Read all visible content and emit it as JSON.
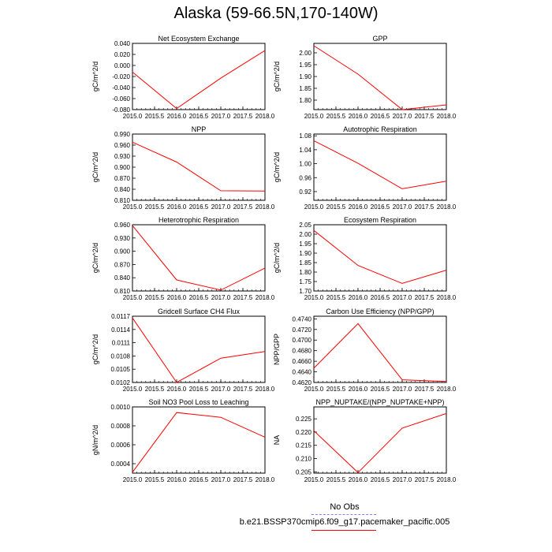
{
  "title": "Alaska (59-66.5N,170-140W)",
  "colors": {
    "model": "#ff0000",
    "obs": "#7f7fff",
    "axis": "#000000"
  },
  "legend": {
    "obs_label": "No Obs",
    "model_label": "b.e21.BSSP370cmip6.f09_g17.pacemaker_pacific.005"
  },
  "chart_data": [
    {
      "type": "line",
      "title": "Net Ecosystem Exchange",
      "ylabel": "gC/m^2/d",
      "xlim": [
        2015.0,
        2018.0
      ],
      "xticks": [
        "2015.0",
        "2015.5",
        "2016.0",
        "2016.5",
        "2017.0",
        "2017.5",
        "2018.0"
      ],
      "ylim": [
        -0.08,
        0.04
      ],
      "yticks": [
        "0.040",
        "0.020",
        "0.000",
        "-0.020",
        "-0.040",
        "-0.060",
        "-0.080"
      ],
      "series": [
        {
          "x": [
            2015,
            2016,
            2017,
            2018
          ],
          "y": [
            -0.012,
            -0.078,
            -0.023,
            0.027
          ]
        }
      ]
    },
    {
      "type": "line",
      "title": "GPP",
      "ylabel": "gC/m^2/d",
      "xlim": [
        2015.0,
        2018.0
      ],
      "xticks": [
        "2015.0",
        "2015.5",
        "2016.0",
        "2016.5",
        "2017.0",
        "2017.5",
        "2018.0"
      ],
      "ylim": [
        1.76,
        2.04
      ],
      "yticks": [
        "2.00",
        "1.95",
        "1.90",
        "1.85",
        "1.80"
      ],
      "series": [
        {
          "x": [
            2015,
            2016,
            2017,
            2018
          ],
          "y": [
            2.03,
            1.91,
            1.76,
            1.78
          ]
        }
      ]
    },
    {
      "type": "line",
      "title": "NPP",
      "ylabel": "gC/m^2/d",
      "xlim": [
        2015.0,
        2018.0
      ],
      "xticks": [
        "2015.0",
        "2015.5",
        "2016.0",
        "2016.5",
        "2017.0",
        "2017.5",
        "2018.0"
      ],
      "ylim": [
        0.81,
        0.99
      ],
      "yticks": [
        "0.990",
        "0.960",
        "0.930",
        "0.900",
        "0.870",
        "0.840",
        "0.810"
      ],
      "series": [
        {
          "x": [
            2015,
            2016,
            2017,
            2018
          ],
          "y": [
            0.968,
            0.914,
            0.836,
            0.835
          ]
        }
      ]
    },
    {
      "type": "line",
      "title": "Autotrophic Respiration",
      "ylabel": "gC/m^2/d",
      "xlim": [
        2015.0,
        2018.0
      ],
      "xticks": [
        "2015.0",
        "2015.5",
        "2016.0",
        "2016.5",
        "2017.0",
        "2017.5",
        "2018.0"
      ],
      "ylim": [
        0.895,
        1.085
      ],
      "yticks": [
        "1.08",
        "1.04",
        "1.00",
        "0.96",
        "0.92"
      ],
      "series": [
        {
          "x": [
            2015,
            2016,
            2017,
            2018
          ],
          "y": [
            1.066,
            1.001,
            0.928,
            0.95
          ]
        }
      ]
    },
    {
      "type": "line",
      "title": "Heterotrophic Respiration",
      "ylabel": "gC/m^2/d",
      "xlim": [
        2015.0,
        2018.0
      ],
      "xticks": [
        "2015.0",
        "2015.5",
        "2016.0",
        "2016.5",
        "2017.0",
        "2017.5",
        "2018.0"
      ],
      "ylim": [
        0.81,
        0.96
      ],
      "yticks": [
        "0.960",
        "0.930",
        "0.900",
        "0.870",
        "0.840",
        "0.810"
      ],
      "series": [
        {
          "x": [
            2015,
            2016,
            2017,
            2018
          ],
          "y": [
            0.958,
            0.835,
            0.812,
            0.862
          ]
        }
      ]
    },
    {
      "type": "line",
      "title": "Ecosystem Respiration",
      "ylabel": "gC/m^2/d",
      "xlim": [
        2015.0,
        2018.0
      ],
      "xticks": [
        "2015.0",
        "2015.5",
        "2016.0",
        "2016.5",
        "2017.0",
        "2017.5",
        "2018.0"
      ],
      "ylim": [
        1.7,
        2.05
      ],
      "yticks": [
        "2.05",
        "2.00",
        "1.95",
        "1.90",
        "1.85",
        "1.80",
        "1.75",
        "1.70"
      ],
      "series": [
        {
          "x": [
            2015,
            2016,
            2017,
            2018
          ],
          "y": [
            2.02,
            1.835,
            1.74,
            1.81
          ]
        }
      ]
    },
    {
      "type": "line",
      "title": "Gridcell Surface CH4 Flux",
      "ylabel": "gC/m^2/d",
      "xlim": [
        2015.0,
        2018.0
      ],
      "xticks": [
        "2015.0",
        "2015.5",
        "2016.0",
        "2016.5",
        "2017.0",
        "2017.5",
        "2018.0"
      ],
      "ylim": [
        0.0102,
        0.0117
      ],
      "yticks": [
        "0.0117",
        "0.0114",
        "0.0111",
        "0.0108",
        "0.0105",
        "0.0102"
      ],
      "series": [
        {
          "x": [
            2015,
            2016,
            2017,
            2018
          ],
          "y": [
            0.01166,
            0.0102,
            0.01075,
            0.0109
          ]
        }
      ]
    },
    {
      "type": "line",
      "title": "Carbon Use Efficiency (NPP/GPP)",
      "ylabel": "NPP/GPP",
      "xlim": [
        2015.0,
        2018.0
      ],
      "xticks": [
        "2015.0",
        "2015.5",
        "2016.0",
        "2016.5",
        "2017.0",
        "2017.5",
        "2018.0"
      ],
      "ylim": [
        0.462,
        0.4745
      ],
      "yticks": [
        "0.4740",
        "0.4720",
        "0.4700",
        "0.4680",
        "0.4660",
        "0.4640",
        "0.4620"
      ],
      "series": [
        {
          "x": [
            2015,
            2016,
            2017,
            2018
          ],
          "y": [
            0.4647,
            0.4731,
            0.4625,
            0.4622
          ]
        }
      ]
    },
    {
      "type": "line",
      "title": "Soil NO3 Pool Loss to Leaching",
      "ylabel": "gN/m^2/d",
      "xlim": [
        2015.0,
        2018.0
      ],
      "xticks": [
        "2015.0",
        "2015.5",
        "2016.0",
        "2016.5",
        "2017.0",
        "2017.5",
        "2018.0"
      ],
      "ylim": [
        0.0003,
        0.001
      ],
      "yticks": [
        "0.0010",
        "0.0008",
        "0.0006",
        "0.0004"
      ],
      "series": [
        {
          "x": [
            2015,
            2016,
            2017,
            2018
          ],
          "y": [
            0.00031,
            0.00094,
            0.00089,
            0.00068
          ]
        }
      ]
    },
    {
      "type": "line",
      "title": "NPP_NUPTAKE/(NPP_NUPTAKE+NPP)",
      "ylabel": "NA",
      "xlim": [
        2015.0,
        2018.0
      ],
      "xticks": [
        "2015.0",
        "2015.5",
        "2016.0",
        "2016.5",
        "2017.0",
        "2017.5",
        "2018.0"
      ],
      "ylim": [
        0.2045,
        0.2295
      ],
      "yticks": [
        "0.225",
        "0.220",
        "0.215",
        "0.210",
        "0.205"
      ],
      "series": [
        {
          "x": [
            2015,
            2016,
            2017,
            2018
          ],
          "y": [
            0.2205,
            0.2047,
            0.2215,
            0.227
          ]
        }
      ]
    }
  ]
}
